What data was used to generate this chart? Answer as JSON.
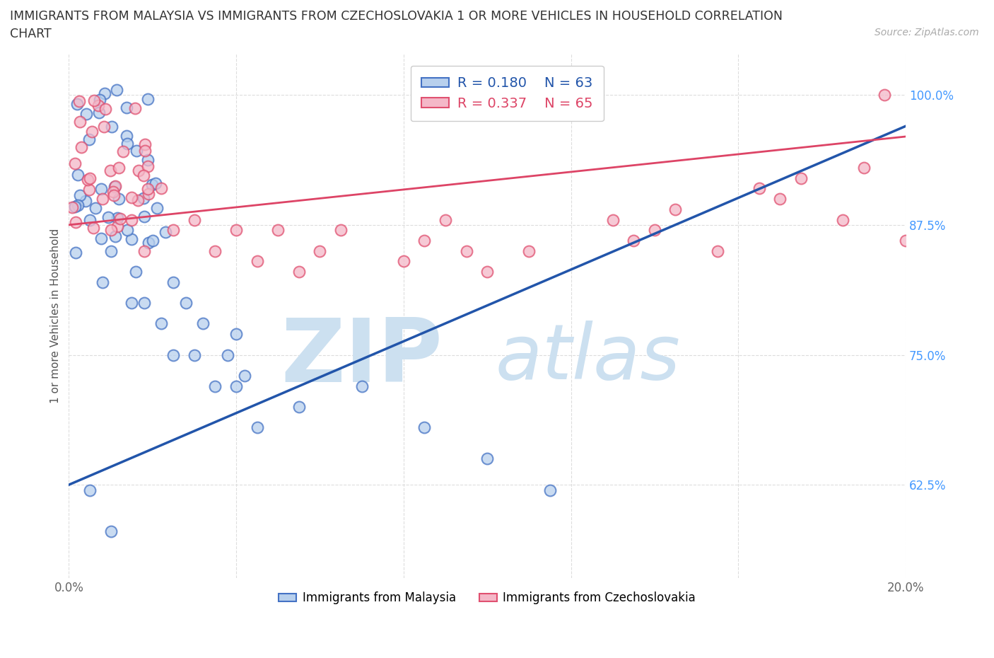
{
  "title_line1": "IMMIGRANTS FROM MALAYSIA VS IMMIGRANTS FROM CZECHOSLOVAKIA 1 OR MORE VEHICLES IN HOUSEHOLD CORRELATION",
  "title_line2": "CHART",
  "source": "Source: ZipAtlas.com",
  "ylabel": "1 or more Vehicles in Household",
  "xlim": [
    0.0,
    0.2
  ],
  "ylim": [
    0.535,
    1.04
  ],
  "yticks_right": [
    0.625,
    0.75,
    0.875,
    1.0
  ],
  "ytick_right_labels": [
    "62.5%",
    "75.0%",
    "87.5%",
    "100.0%"
  ],
  "xticks": [
    0.0,
    0.04,
    0.08,
    0.12,
    0.16,
    0.2
  ],
  "xtick_labels": [
    "0.0%",
    "",
    "",
    "",
    "",
    "20.0%"
  ],
  "malaysia_fill": "#b8d0ed",
  "malaysia_edge": "#4472c4",
  "czechoslovakia_fill": "#f4b8c8",
  "czechoslovakia_edge": "#e05070",
  "malaysia_line_color": "#2255aa",
  "czechoslovakia_line_color": "#dd4466",
  "R_malaysia": 0.18,
  "N_malaysia": 63,
  "R_czechoslovakia": 0.337,
  "N_czechoslovakia": 65,
  "background_color": "#ffffff",
  "grid_color": "#dddddd",
  "watermark_color": "#cce0f0"
}
